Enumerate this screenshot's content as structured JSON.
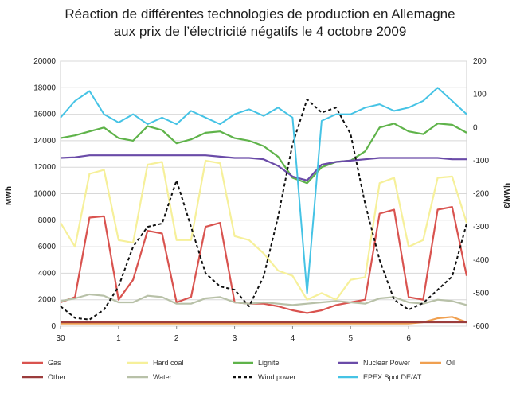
{
  "title_line1": "Réaction de différentes technologies de production en Allemagne",
  "title_line2": "aux prix de l’électricité négatifs le 4 octobre 2009",
  "chart_data": {
    "type": "line",
    "title": "Réaction de différentes technologies de production en Allemagne aux prix de l’électricité négatifs le 4 octobre 2009",
    "xlabel": "",
    "ylabel": "MWh",
    "y2label": "€/MWh",
    "ylim": [
      0,
      20000
    ],
    "y2lim": [
      -600,
      200
    ],
    "xlim": [
      0,
      7
    ],
    "x_tick_labels": [
      "30",
      "1",
      "2",
      "3",
      "4",
      "5",
      "6"
    ],
    "y_ticks": [
      0,
      2000,
      4000,
      6000,
      8000,
      10000,
      12000,
      14000,
      16000,
      18000,
      20000
    ],
    "y2_ticks": [
      -600,
      -500,
      -400,
      -300,
      -200,
      -100,
      0,
      100,
      200
    ],
    "x": [
      0,
      0.25,
      0.5,
      0.75,
      1,
      1.25,
      1.5,
      1.75,
      2,
      2.25,
      2.5,
      2.75,
      3,
      3.25,
      3.5,
      3.75,
      4,
      4.25,
      4.5,
      4.75,
      5,
      5.25,
      5.5,
      5.75,
      6,
      6.25,
      6.5,
      6.75,
      7
    ],
    "series": [
      {
        "name": "Gas",
        "color": "#d9534f",
        "dash": "",
        "axis": "left",
        "values": [
          1800,
          2200,
          8200,
          8300,
          2000,
          3500,
          7200,
          7000,
          1800,
          2200,
          7500,
          7800,
          1800,
          1700,
          1700,
          1500,
          1200,
          1000,
          1200,
          1600,
          1800,
          2000,
          8500,
          8800,
          2200,
          2000,
          8800,
          9000,
          3800
        ]
      },
      {
        "name": "Hard coal",
        "color": "#f6f09a",
        "dash": "",
        "axis": "left",
        "values": [
          7800,
          6000,
          11500,
          11800,
          6500,
          6300,
          12200,
          12400,
          6500,
          6500,
          12500,
          12300,
          6800,
          6500,
          5500,
          4200,
          3800,
          2000,
          2500,
          2000,
          3500,
          3700,
          10800,
          11200,
          6000,
          6500,
          11200,
          11300,
          7800
        ]
      },
      {
        "name": "Lignite",
        "color": "#5fb34a",
        "dash": "",
        "axis": "left",
        "values": [
          14200,
          14400,
          14700,
          15000,
          14200,
          14000,
          15100,
          14800,
          13800,
          14100,
          14600,
          14700,
          14200,
          14000,
          13600,
          12800,
          11200,
          10800,
          12000,
          12400,
          12500,
          13200,
          15000,
          15300,
          14700,
          14500,
          15300,
          15200,
          14600
        ]
      },
      {
        "name": "Nuclear Power",
        "color": "#6a4ba8",
        "dash": "",
        "axis": "left",
        "values": [
          12700,
          12750,
          12900,
          12900,
          12900,
          12900,
          12900,
          12900,
          12900,
          12900,
          12900,
          12800,
          12700,
          12700,
          12600,
          12100,
          11300,
          11000,
          12200,
          12400,
          12500,
          12600,
          12700,
          12700,
          12700,
          12700,
          12700,
          12600,
          12600
        ]
      },
      {
        "name": "Oil",
        "color": "#f0a050",
        "dash": "",
        "axis": "left",
        "values": [
          200,
          200,
          200,
          200,
          200,
          200,
          200,
          200,
          200,
          200,
          200,
          200,
          200,
          200,
          200,
          200,
          200,
          200,
          200,
          200,
          200,
          200,
          200,
          200,
          200,
          300,
          600,
          700,
          300
        ]
      },
      {
        "name": "Other",
        "color": "#9b3c3c",
        "dash": "",
        "axis": "left",
        "values": [
          300,
          300,
          300,
          300,
          300,
          300,
          300,
          300,
          300,
          300,
          300,
          300,
          300,
          300,
          300,
          300,
          300,
          300,
          300,
          300,
          300,
          300,
          300,
          300,
          300,
          300,
          300,
          300,
          300
        ]
      },
      {
        "name": "Water",
        "color": "#b8c1a8",
        "dash": "",
        "axis": "left",
        "values": [
          1900,
          2100,
          2400,
          2300,
          1800,
          1800,
          2300,
          2200,
          1700,
          1700,
          2100,
          2200,
          1800,
          1700,
          1800,
          1700,
          1600,
          1700,
          1800,
          1900,
          1800,
          1700,
          2100,
          2200,
          1800,
          1700,
          2000,
          1900,
          1600
        ]
      },
      {
        "name": "Wind power",
        "color": "#111111",
        "dash": "4,3",
        "axis": "right",
        "values": [
          -540,
          -575,
          -580,
          -550,
          -480,
          -360,
          -300,
          -290,
          -160,
          -300,
          -440,
          -480,
          -490,
          -540,
          -450,
          -270,
          -50,
          85,
          45,
          60,
          -20,
          -230,
          -400,
          -520,
          -550,
          -530,
          -490,
          -450,
          -290
        ]
      },
      {
        "name": "EPEX Spot DE/AT",
        "color": "#45c3e5",
        "dash": "",
        "axis": "right",
        "values": [
          30,
          80,
          110,
          40,
          15,
          40,
          10,
          30,
          10,
          50,
          30,
          10,
          40,
          55,
          35,
          60,
          30,
          -500,
          20,
          40,
          40,
          60,
          70,
          50,
          60,
          80,
          120,
          80,
          40
        ]
      }
    ]
  }
}
